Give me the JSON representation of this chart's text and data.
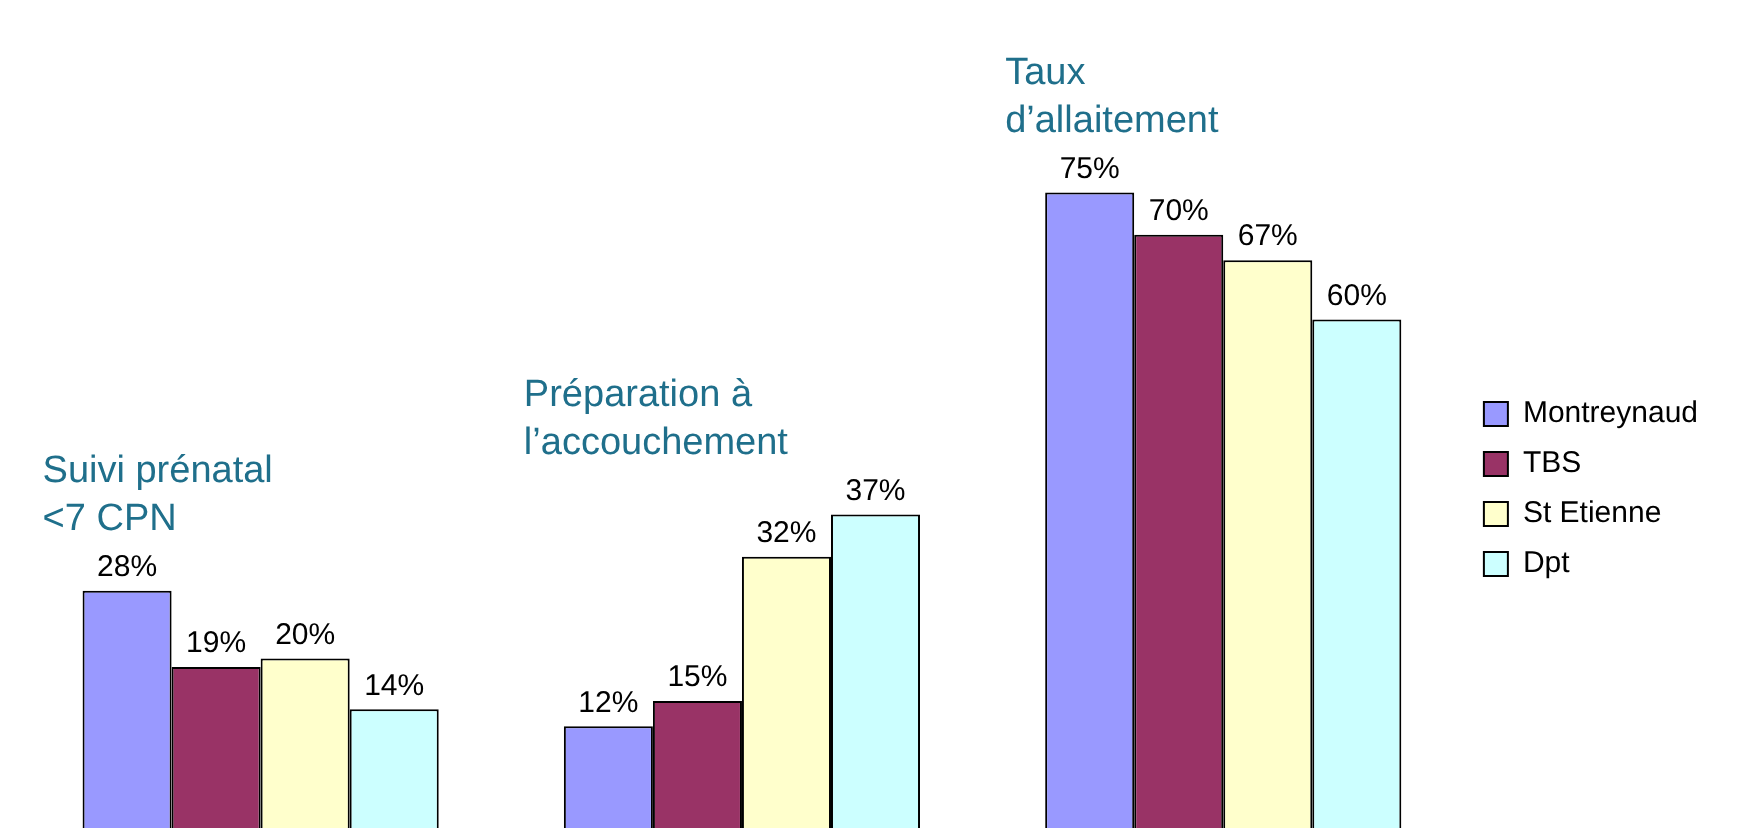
{
  "chart_data": {
    "type": "bar",
    "categories": [
      "Suivi prénatal <7 CPN",
      "Préparation à l’accouchement",
      "Taux d’allaitement"
    ],
    "series": [
      {
        "name": "Montreynaud",
        "color": "#9999ff",
        "values": [
          28,
          12,
          75
        ],
        "value_labels": [
          "28%",
          "12%",
          "75%"
        ]
      },
      {
        "name": "TBS",
        "color": "#993366",
        "values": [
          19,
          15,
          70
        ],
        "value_labels": [
          "19%",
          "15%",
          "70%"
        ]
      },
      {
        "name": "St Etienne",
        "color": "#ffffcc",
        "values": [
          20,
          32,
          67
        ],
        "value_labels": [
          "20%",
          "32%",
          "67%"
        ]
      },
      {
        "name": "Dpt",
        "color": "#ccffff",
        "values": [
          14,
          37,
          60
        ],
        "value_labels": [
          "14%",
          "37%",
          "60%"
        ]
      }
    ],
    "legend": "right"
  }
}
